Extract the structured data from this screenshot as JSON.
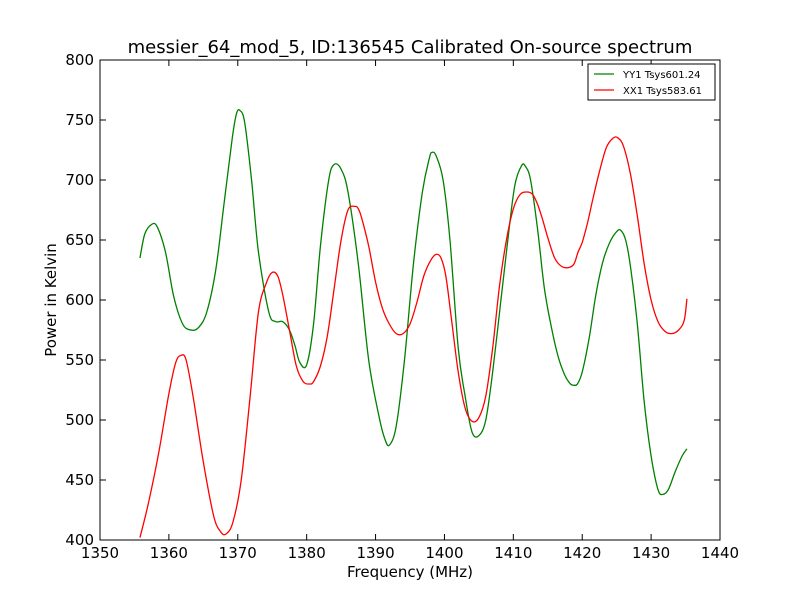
{
  "chart_data": {
    "type": "line",
    "title": "messier_64_mod_5, ID:136545 Calibrated On-source spectrum",
    "xlabel": "Frequency (MHz)",
    "ylabel": "Power in Kelvin",
    "xlim": [
      1350,
      1440
    ],
    "ylim": [
      400,
      800
    ],
    "xticks": [
      1350,
      1360,
      1370,
      1380,
      1390,
      1400,
      1410,
      1420,
      1430,
      1440
    ],
    "yticks": [
      400,
      450,
      500,
      550,
      600,
      650,
      700,
      750,
      800
    ],
    "grid": false,
    "legend_position": "top-right",
    "series": [
      {
        "name": "YY1 Tsys601.24",
        "color": "#008000",
        "x": [
          1355.8,
          1356.5,
          1357.5,
          1358.3,
          1359.5,
          1360.7,
          1362,
          1363.2,
          1364.3,
          1365.5,
          1366.8,
          1368,
          1369.2,
          1369.8,
          1370.3,
          1371,
          1372,
          1373,
          1374.5,
          1375.5,
          1376.5,
          1377.5,
          1378.3,
          1379,
          1380,
          1381,
          1382,
          1383.2,
          1384,
          1385,
          1386,
          1387.5,
          1389,
          1390.5,
          1391.3,
          1392,
          1393,
          1394.2,
          1395.5,
          1396.8,
          1397.8,
          1398.2,
          1398.8,
          1399.8,
          1400.8,
          1402,
          1403,
          1404,
          1405,
          1406,
          1407,
          1408.2,
          1409.2,
          1410.2,
          1411.2,
          1411.8,
          1412.5,
          1413.5,
          1414.5,
          1415.5,
          1416.5,
          1417.5,
          1418.3,
          1418.8,
          1419.3,
          1420,
          1421,
          1422,
          1423,
          1424,
          1425,
          1425.6,
          1426.3,
          1427,
          1428,
          1429,
          1430,
          1431,
          1431.7,
          1432.5,
          1433.5,
          1434.5,
          1435.2
        ],
        "values": [
          635,
          655,
          663,
          661,
          640,
          603,
          580,
          575,
          577,
          590,
          625,
          680,
          735,
          755,
          758,
          748,
          700,
          640,
          590,
          582,
          582,
          575,
          562,
          548,
          546,
          580,
          645,
          700,
          713,
          709,
          690,
          630,
          550,
          503,
          485,
          479,
          495,
          550,
          630,
          690,
          718,
          723,
          720,
          700,
          650,
          560,
          520,
          490,
          487,
          500,
          540,
          600,
          650,
          695,
          712,
          711,
          700,
          660,
          610,
          578,
          553,
          537,
          530,
          529,
          530,
          540,
          568,
          605,
          632,
          648,
          657,
          658,
          650,
          628,
          580,
          515,
          470,
          442,
          438,
          442,
          457,
          470,
          476
        ]
      },
      {
        "name": "XX1 Tsys583.61",
        "color": "#ff0000",
        "x": [
          1355.8,
          1357,
          1358.5,
          1360,
          1361,
          1361.8,
          1362.5,
          1363.5,
          1365,
          1366.5,
          1367.5,
          1368.3,
          1369.3,
          1370.5,
          1371.8,
          1373,
          1374.2,
          1375,
          1375.8,
          1376.5,
          1377.5,
          1378.5,
          1379.5,
          1380.4,
          1381,
          1382,
          1383,
          1384,
          1385,
          1386,
          1387,
          1387.5,
          1388,
          1389,
          1390,
          1391,
          1392,
          1393,
          1394,
          1395,
          1396,
          1397,
          1398,
          1398.8,
          1399.5,
          1400.2,
          1401,
          1402,
          1403,
          1404,
          1405,
          1406,
          1407,
          1408,
          1409,
          1410,
          1411,
          1412,
          1412.8,
          1413.5,
          1414.2,
          1415,
          1416,
          1417,
          1418,
          1418.8,
          1419.4,
          1420,
          1420.8,
          1421.5,
          1422.5,
          1423.5,
          1424.5,
          1425.2,
          1426,
          1427,
          1428,
          1429,
          1430,
          1431,
          1432,
          1433,
          1434,
          1434.8,
          1435.2
        ],
        "values": [
          402,
          430,
          472,
          522,
          548,
          554,
          550,
          520,
          465,
          420,
          407,
          405,
          415,
          450,
          520,
          590,
          615,
          623,
          620,
          605,
          575,
          545,
          532,
          530,
          532,
          545,
          570,
          610,
          650,
          675,
          678,
          676,
          668,
          645,
          615,
          593,
          580,
          572,
          572,
          580,
          598,
          620,
          633,
          638,
          635,
          620,
          585,
          540,
          510,
          499,
          502,
          520,
          560,
          612,
          650,
          676,
          688,
          690,
          688,
          680,
          668,
          652,
          635,
          628,
          627,
          630,
          640,
          648,
          665,
          683,
          707,
          727,
          735,
          735,
          728,
          705,
          670,
          630,
          600,
          582,
          574,
          572,
          575,
          583,
          601
        ]
      }
    ]
  }
}
